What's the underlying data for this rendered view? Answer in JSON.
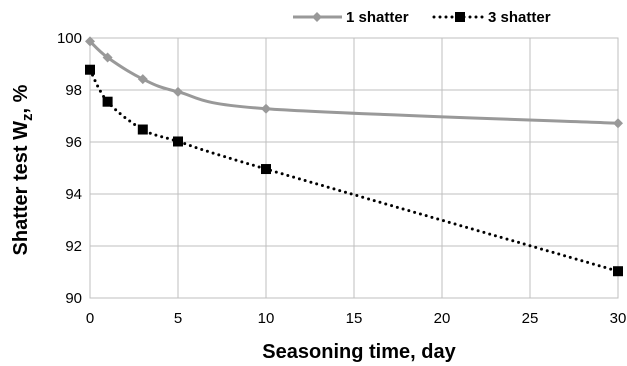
{
  "chart_data": {
    "type": "line",
    "xlabel": "Seasoning time, day",
    "ylabel_main": "Shatter test W",
    "ylabel_sub": "z",
    "ylabel_suffix": ", %",
    "xlim": [
      0,
      30
    ],
    "ylim": [
      90,
      100
    ],
    "xticks": [
      0,
      5,
      10,
      15,
      20,
      25,
      30
    ],
    "yticks": [
      90,
      92,
      94,
      96,
      98,
      100
    ],
    "grid": true,
    "legend_position": "top-right",
    "series": [
      {
        "name": "1 shatter",
        "style": "solid",
        "marker": "diamond",
        "color": "#999999",
        "x": [
          0,
          1,
          3,
          5,
          10,
          30
        ],
        "y": [
          99.87,
          99.25,
          98.42,
          97.93,
          97.28,
          96.72
        ]
      },
      {
        "name": "3 shatter",
        "style": "dotted",
        "marker": "square",
        "color": "#000000",
        "x": [
          0,
          1,
          3,
          5,
          10,
          30
        ],
        "y": [
          98.78,
          97.55,
          96.48,
          96.02,
          94.96,
          91.03
        ]
      }
    ]
  }
}
